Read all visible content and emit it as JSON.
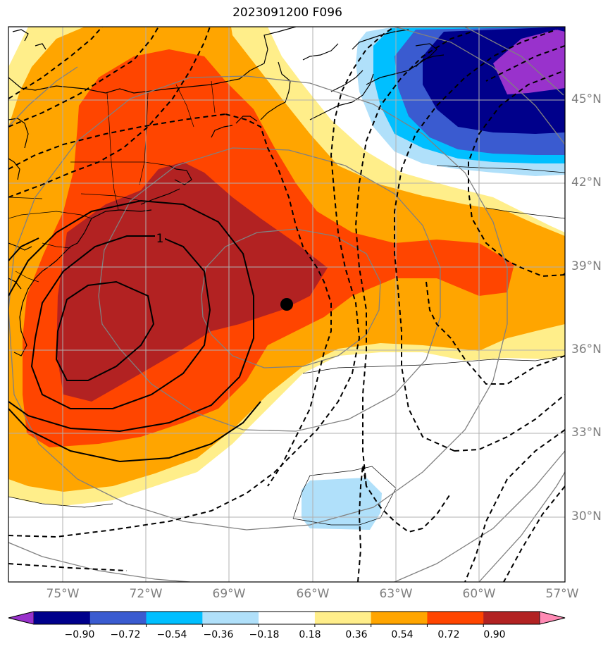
{
  "title": "2023091200 F096",
  "lat_labels": [
    "45°N",
    "42°N",
    "39°N",
    "36°N",
    "33°N",
    "30°N"
  ],
  "lon_labels": [
    "75°W",
    "72°W",
    "69°W",
    "66°W",
    "63°W",
    "60°W",
    "57°W"
  ],
  "contour_label": "1",
  "colorbar": {
    "tick_labels": [
      "−0.90",
      "−0.72",
      "−0.54",
      "−0.36",
      "−0.18",
      "0.18",
      "0.36",
      "0.54",
      "0.72",
      "0.90"
    ],
    "colors": [
      "#9932cc",
      "#00008b",
      "#3a5bd0",
      "#00bfff",
      "#b0e0fa",
      "#ffffff",
      "#ffee8a",
      "#ffa500",
      "#ff4500",
      "#b22222",
      "#ff8ab4"
    ]
  },
  "marker": {
    "lat": 37.6,
    "lon": -67.0,
    "color": "#000000"
  }
}
